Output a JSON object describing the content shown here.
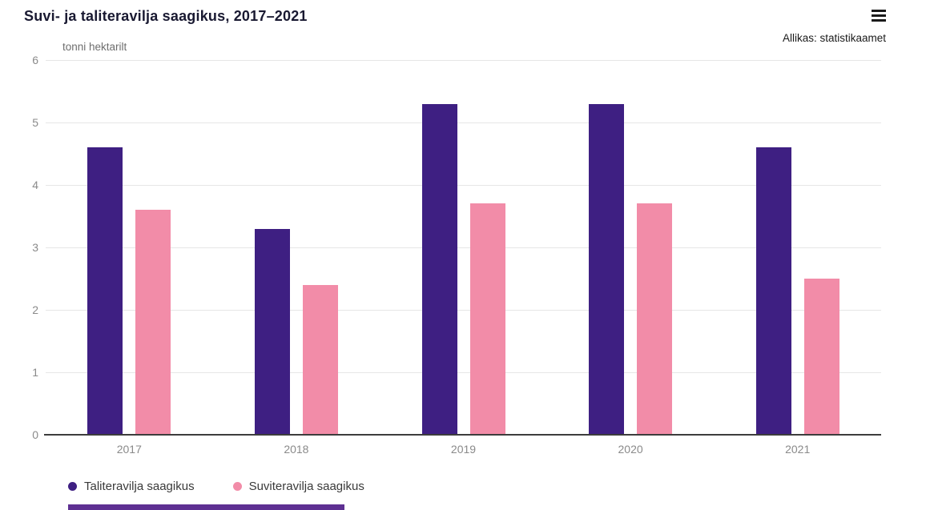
{
  "header": {
    "title": "Suvi- ja taliteravilja saagikus, 2017–2021",
    "source": "Allikas: statistikaamet",
    "menu_icon": "hamburger-menu-icon"
  },
  "chart_data": {
    "type": "bar",
    "title": "Suvi- ja taliteravilja saagikus, 2017–2021",
    "unit_label": "tonni hektarilt",
    "categories": [
      "2017",
      "2018",
      "2019",
      "2020",
      "2021"
    ],
    "series": [
      {
        "name": "Taliteravilja saagikus",
        "color": "#3e1f82",
        "values": [
          4.6,
          3.3,
          5.3,
          5.3,
          4.6
        ]
      },
      {
        "name": "Suviteravilja saagikus",
        "color": "#f28ca8",
        "values": [
          3.6,
          2.4,
          3.7,
          3.7,
          2.5
        ]
      }
    ],
    "ylabel": "",
    "xlabel": "",
    "ylim": [
      0,
      6
    ],
    "yticks": [
      0,
      1,
      2,
      3,
      4,
      5,
      6
    ],
    "grid": true,
    "gridline_color": "#e6e6e6",
    "axis_line_color": "#3d3d3d",
    "tick_label_color": "#8a8a8a",
    "legend_position": "bottom-left"
  }
}
